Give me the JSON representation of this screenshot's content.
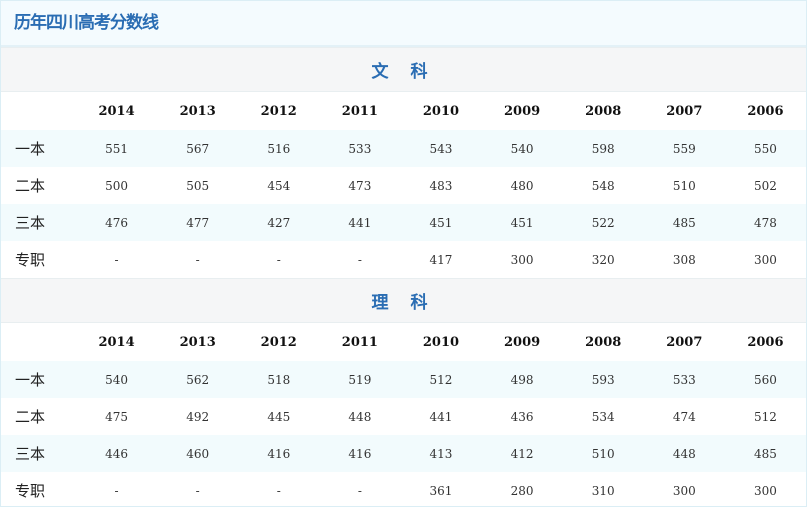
{
  "title": "历年四川高考分数线",
  "sections": [
    {
      "name": "文 科",
      "years": [
        "2014",
        "2013",
        "2012",
        "2011",
        "2010",
        "2009",
        "2008",
        "2007",
        "2006"
      ],
      "rows": [
        {
          "label": "一本",
          "values": [
            "551",
            "567",
            "516",
            "533",
            "543",
            "540",
            "598",
            "559",
            "550"
          ]
        },
        {
          "label": "二本",
          "values": [
            "500",
            "505",
            "454",
            "473",
            "483",
            "480",
            "548",
            "510",
            "502"
          ]
        },
        {
          "label": "三本",
          "values": [
            "476",
            "477",
            "427",
            "441",
            "451",
            "451",
            "522",
            "485",
            "478"
          ]
        },
        {
          "label": "专职",
          "values": [
            "-",
            "-",
            "-",
            "-",
            "417",
            "300",
            "320",
            "308",
            "300"
          ]
        }
      ]
    },
    {
      "name": "理 科",
      "years": [
        "2014",
        "2013",
        "2012",
        "2011",
        "2010",
        "2009",
        "2008",
        "2007",
        "2006"
      ],
      "rows": [
        {
          "label": "一本",
          "values": [
            "540",
            "562",
            "518",
            "519",
            "512",
            "498",
            "593",
            "533",
            "560"
          ]
        },
        {
          "label": "二本",
          "values": [
            "475",
            "492",
            "445",
            "448",
            "441",
            "436",
            "534",
            "474",
            "512"
          ]
        },
        {
          "label": "三本",
          "values": [
            "446",
            "460",
            "416",
            "416",
            "413",
            "412",
            "510",
            "448",
            "485"
          ]
        },
        {
          "label": "专职",
          "values": [
            "-",
            "-",
            "-",
            "-",
            "361",
            "280",
            "310",
            "300",
            "300"
          ]
        }
      ]
    }
  ],
  "colors": {
    "accent": "#2a6db3",
    "row_alt": "#f2fbfd",
    "section_bg": "#f5f6f7"
  }
}
